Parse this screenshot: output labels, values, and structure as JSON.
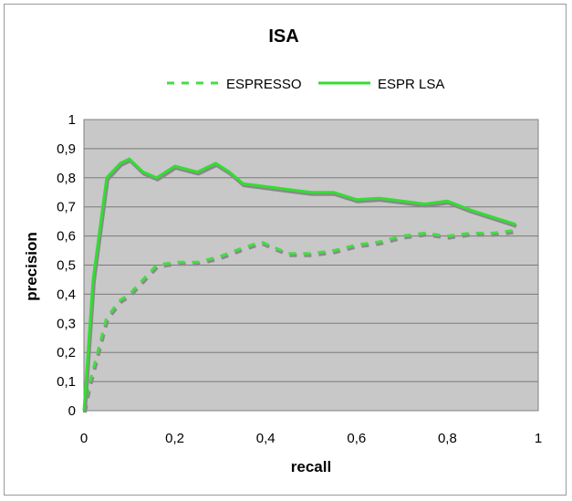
{
  "chart_data": {
    "type": "line",
    "title": "ISA",
    "xlabel": "recall",
    "ylabel": "precision",
    "xlim": [
      0,
      1
    ],
    "ylim": [
      0,
      1
    ],
    "x_ticks": [
      "0",
      "0,2",
      "0,4",
      "0,6",
      "0,8",
      "1"
    ],
    "y_ticks": [
      "0",
      "0,1",
      "0,2",
      "0,3",
      "0,4",
      "0,5",
      "0,6",
      "0,7",
      "0,8",
      "0,9",
      "1"
    ],
    "grid": true,
    "legend_position": "top",
    "plot_background": "#c8c8c8",
    "series": [
      {
        "name": "ESPRESSO",
        "style": "dashed",
        "color": "#44dd44",
        "x": [
          0,
          0.01,
          0.03,
          0.05,
          0.08,
          0.1,
          0.13,
          0.16,
          0.2,
          0.25,
          0.3,
          0.35,
          0.39,
          0.45,
          0.5,
          0.55,
          0.6,
          0.65,
          0.7,
          0.75,
          0.8,
          0.85,
          0.9,
          0.95
        ],
        "values": [
          0,
          0.08,
          0.2,
          0.32,
          0.38,
          0.4,
          0.45,
          0.5,
          0.51,
          0.51,
          0.53,
          0.56,
          0.58,
          0.54,
          0.54,
          0.55,
          0.57,
          0.58,
          0.6,
          0.61,
          0.6,
          0.61,
          0.61,
          0.62
        ]
      },
      {
        "name": "ESPR LSA",
        "style": "solid",
        "color": "#33dd33",
        "x": [
          0,
          0.02,
          0.05,
          0.08,
          0.1,
          0.13,
          0.16,
          0.2,
          0.25,
          0.29,
          0.32,
          0.35,
          0.4,
          0.45,
          0.5,
          0.55,
          0.6,
          0.65,
          0.7,
          0.75,
          0.8,
          0.85,
          0.9,
          0.95
        ],
        "values": [
          0,
          0.45,
          0.8,
          0.85,
          0.865,
          0.82,
          0.8,
          0.84,
          0.82,
          0.85,
          0.82,
          0.78,
          0.77,
          0.76,
          0.75,
          0.75,
          0.725,
          0.73,
          0.72,
          0.71,
          0.72,
          0.69,
          0.665,
          0.64
        ]
      }
    ]
  }
}
